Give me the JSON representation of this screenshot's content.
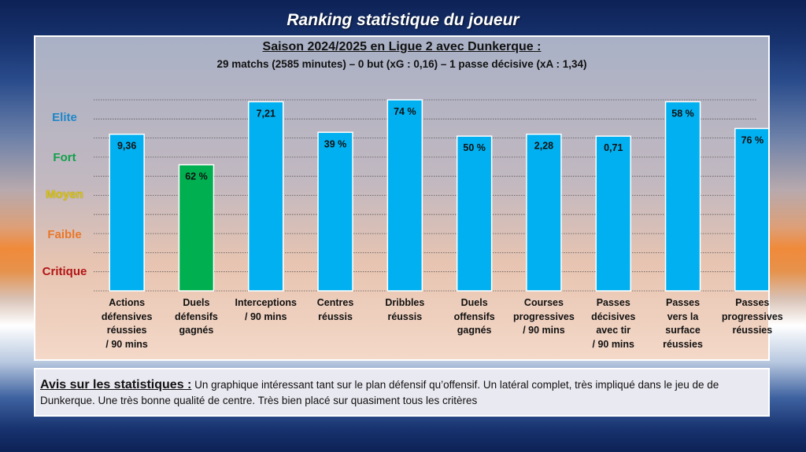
{
  "header": {
    "title": "Ranking statistique du joueur"
  },
  "chart_data": {
    "type": "bar",
    "title": "Saison 2024/2025 en Ligue 2 avec Dunkerque :",
    "subtitle": "29 matchs (2585 minutes) – 0 but (xG : 0,16) – 1 passe décisive (xA : 1,34)",
    "levels": [
      {
        "label": "Elite",
        "color": "#1f86c8"
      },
      {
        "label": "Fort",
        "color": "#12a04a"
      },
      {
        "label": "Moyen",
        "color": "#d6c21a"
      },
      {
        "label": "Faible",
        "color": "#e8772a"
      },
      {
        "label": "Critique",
        "color": "#b21515"
      }
    ],
    "categories": [
      "Actions défensives réussies / 90 mins",
      "Duels défensifs gagnés",
      "Interceptions / 90 mins",
      "Centres réussis",
      "Dribbles réussis",
      "Duels offensifs gagnés",
      "Courses progressives / 90 mins",
      "Passes décisives avec tir / 90 mins",
      "Passes vers la surface réussies",
      "Passes progressives réussies"
    ],
    "category_lines": [
      [
        "Actions",
        "défensives",
        "réussies",
        "/ 90 mins"
      ],
      [
        "Duels",
        "défensifs",
        "gagnés"
      ],
      [
        "Interceptions",
        "/ 90 mins"
      ],
      [
        "Centres",
        "réussis"
      ],
      [
        "Dribbles",
        "réussis"
      ],
      [
        "Duels",
        "offensifs",
        "gagnés"
      ],
      [
        "Courses",
        "progressives",
        "/ 90 mins"
      ],
      [
        "Passes",
        "décisives",
        "avec tir",
        "/ 90 mins"
      ],
      [
        "Passes",
        "vers la",
        "surface",
        "réussies"
      ],
      [
        "Passes",
        "progressives",
        "réussies"
      ]
    ],
    "value_labels": [
      "9,36",
      "62 %",
      "7,21",
      "39 %",
      "74 %",
      "50 %",
      "2,28",
      "0,71",
      "58 %",
      "76 %"
    ],
    "ranking_values": [
      82,
      66,
      99,
      83,
      100,
      81,
      82,
      81,
      99,
      85
    ],
    "bar_colors": [
      "#00b0f0",
      "#00b050",
      "#00b0f0",
      "#00b0f0",
      "#00b0f0",
      "#00b0f0",
      "#00b0f0",
      "#00b0f0",
      "#00b0f0",
      "#00b0f0"
    ],
    "ylim": [
      0,
      100
    ],
    "grid": true
  },
  "notes": {
    "heading": "Avis sur les statistiques :",
    "body": "Un graphique intéressant tant sur le plan défensif qu’offensif. Un latéral complet, très impliqué dans le jeu de de Dunkerque. Une très bonne qualité de centre. Très bien placé sur quasiment tous les critères"
  }
}
